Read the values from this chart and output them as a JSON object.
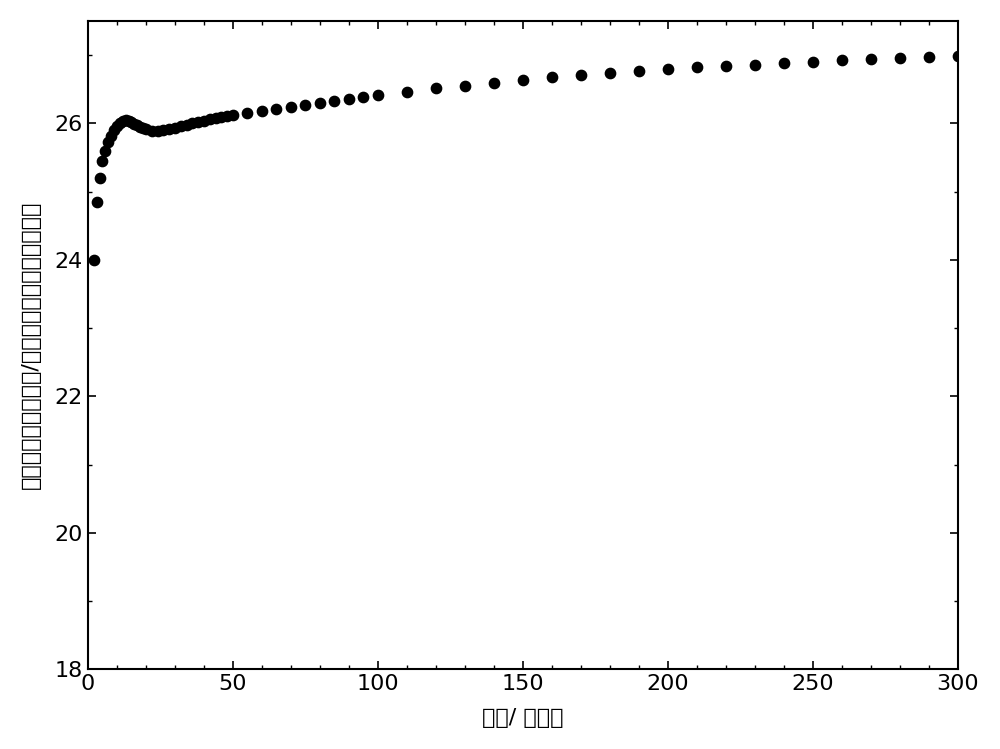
{
  "xlabel": "温度/ 开尔文",
  "ylabel": "摩尔磁化率乘以温度/每摩尔立方厘米乘以开尔文",
  "xlim": [
    0,
    300
  ],
  "ylim": [
    18,
    27.5
  ],
  "yticks": [
    18,
    20,
    22,
    24,
    26
  ],
  "xticks": [
    0,
    50,
    100,
    150,
    200,
    250,
    300
  ],
  "marker_color": "#000000",
  "marker_size": 55,
  "background_color": "#ffffff",
  "data_x": [
    2,
    3,
    4,
    5,
    6,
    7,
    8,
    9,
    10,
    11,
    12,
    13,
    14,
    15,
    16,
    17,
    18,
    19,
    20,
    22,
    24,
    26,
    28,
    30,
    32,
    34,
    36,
    38,
    40,
    42,
    44,
    46,
    48,
    50,
    55,
    60,
    65,
    70,
    75,
    80,
    85,
    90,
    95,
    100,
    110,
    120,
    130,
    140,
    150,
    160,
    170,
    180,
    190,
    200,
    210,
    220,
    230,
    240,
    250,
    260,
    270,
    280,
    290,
    300
  ],
  "data_y": [
    24.0,
    24.85,
    25.2,
    25.45,
    25.6,
    25.72,
    25.82,
    25.9,
    25.96,
    26.0,
    26.03,
    26.05,
    26.04,
    26.02,
    25.99,
    25.97,
    25.95,
    25.93,
    25.91,
    25.89,
    25.89,
    25.9,
    25.91,
    25.93,
    25.96,
    25.98,
    26.0,
    26.02,
    26.04,
    26.06,
    26.07,
    26.09,
    26.1,
    26.12,
    26.15,
    26.18,
    26.21,
    26.24,
    26.27,
    26.3,
    26.33,
    26.36,
    26.39,
    26.41,
    26.46,
    26.51,
    26.55,
    26.59,
    26.63,
    26.67,
    26.7,
    26.73,
    26.76,
    26.79,
    26.82,
    26.84,
    26.86,
    26.88,
    26.9,
    26.92,
    26.94,
    26.95,
    26.97,
    26.98
  ],
  "tick_fontsize": 16,
  "label_fontsize": 16,
  "spine_linewidth": 1.5
}
